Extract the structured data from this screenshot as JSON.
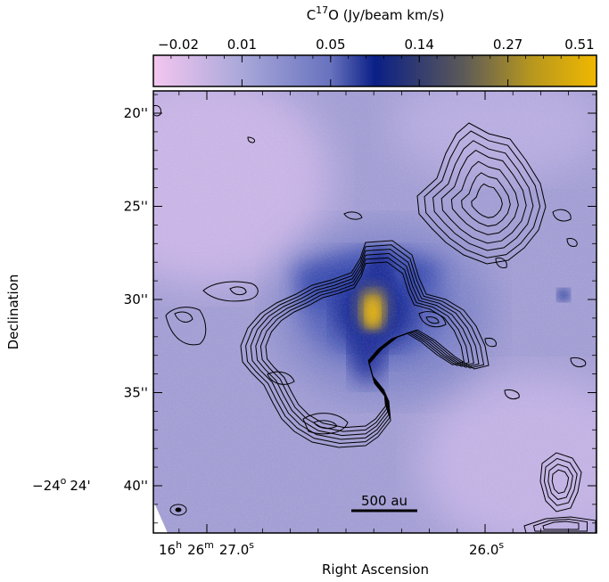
{
  "chart_data": {
    "type": "heatmap",
    "colorbar": {
      "title_prefix": "C",
      "title_sup": "17",
      "title_suffix": "O (Jy/beam km/s)",
      "tick_labels": [
        "−0.02",
        "0.01",
        "0.05",
        "0.14",
        "0.27",
        "0.51"
      ],
      "tick_values": [
        -0.02,
        0.01,
        0.05,
        0.14,
        0.27,
        0.51
      ],
      "colors": [
        "#f3c6ef",
        "#a9a8da",
        "#6872be",
        "#0a1f86",
        "#5c5a58",
        "#b5961f",
        "#f0b800"
      ]
    },
    "ylabel": "Declination",
    "xlabel": "Right Ascension",
    "y_ticks": [
      {
        "label": "20''",
        "value": 20
      },
      {
        "label": "25''",
        "value": 25
      },
      {
        "label": "30''",
        "value": 30
      },
      {
        "label": "35''",
        "value": 35
      },
      {
        "label": "40''",
        "value": 40
      }
    ],
    "y_prefix": {
      "deg": "−24",
      "deg_sup": "o",
      "arcmin": "24'"
    },
    "x_ticks": [
      {
        "h": "16",
        "h_sup": "h",
        "m": "26",
        "m_sup": "m",
        "s": "27.0",
        "s_sup": "s",
        "value": 27.0
      },
      {
        "s": "26.0",
        "s_sup": "s",
        "value": 26.0
      }
    ],
    "scale_bar": {
      "label": "500 au"
    },
    "emission_peak": {
      "ra_s": 26.6,
      "dec_arcsec": 30.5,
      "intensity": 0.51
    }
  }
}
